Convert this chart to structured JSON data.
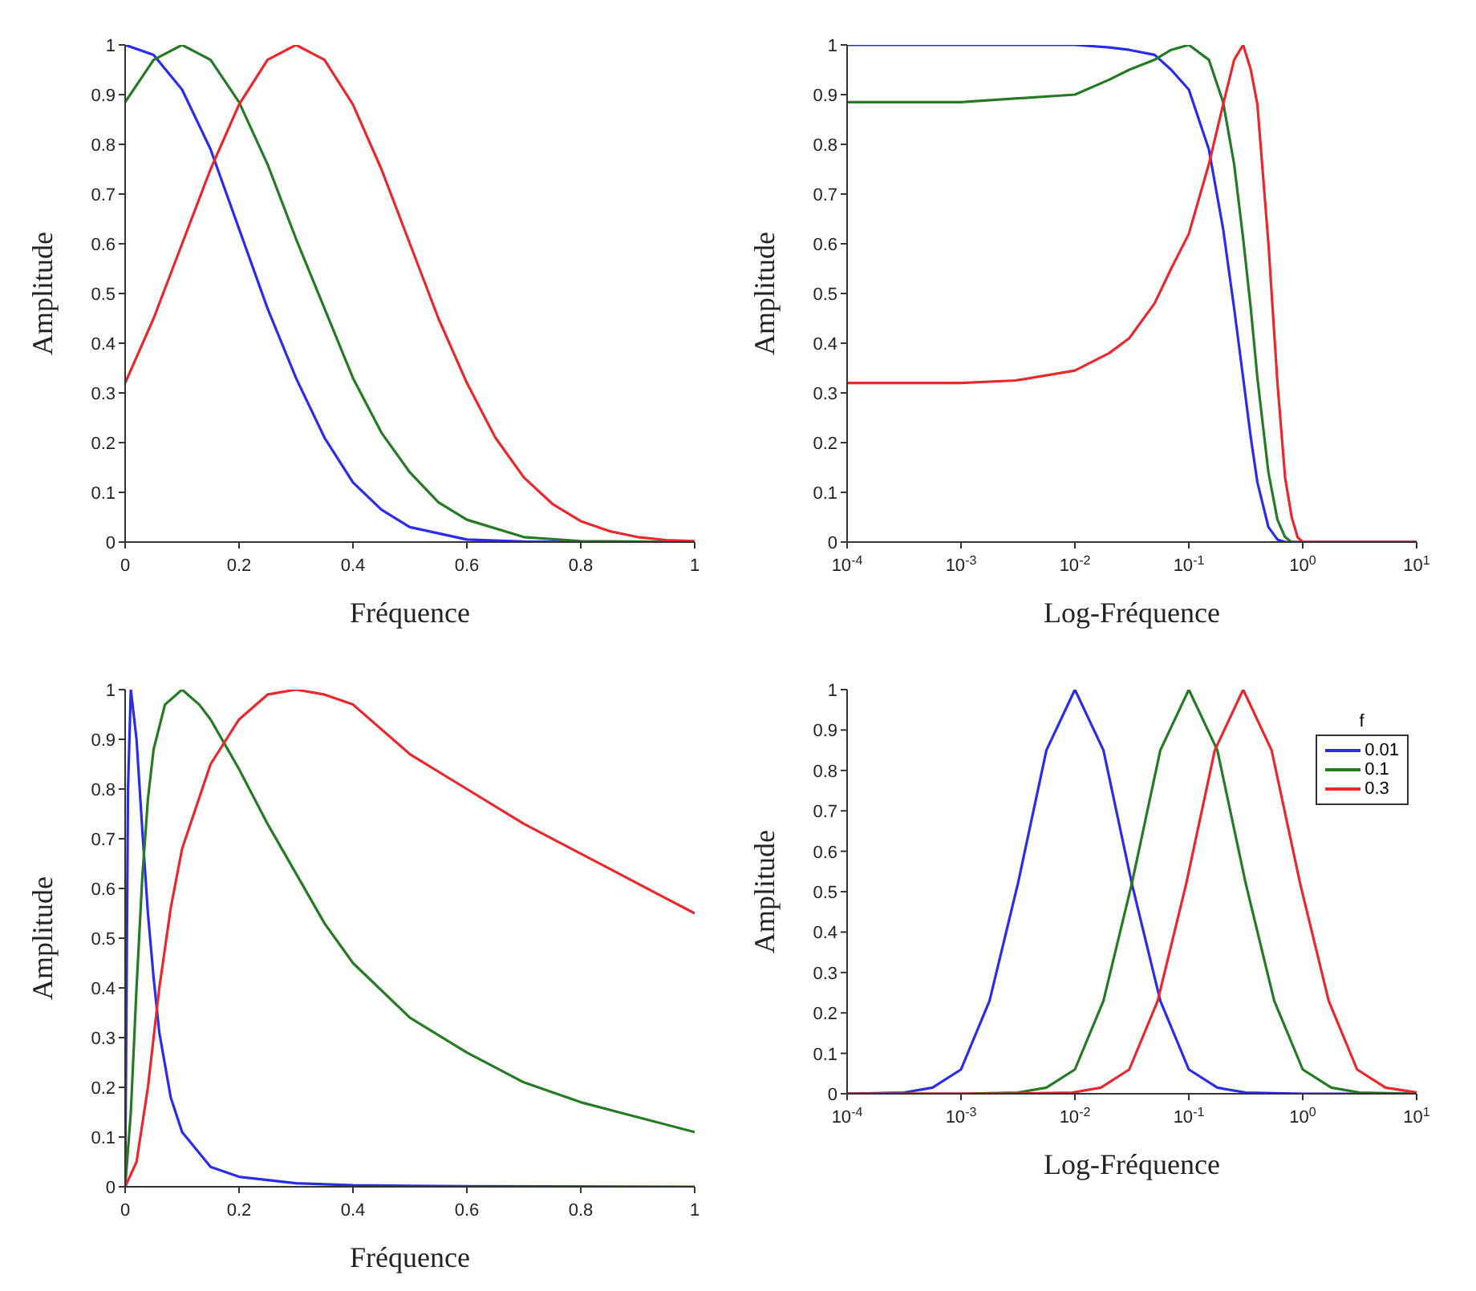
{
  "chart_data": [
    {
      "type": "line",
      "xlabel": "Fréquence",
      "ylabel": "Amplitude",
      "xlim": [
        0,
        1
      ],
      "xticks": [
        0,
        0.2,
        0.4,
        0.6,
        0.8,
        1
      ],
      "ylim": [
        0,
        1
      ],
      "yticks": [
        0,
        0.1,
        0.2,
        0.3,
        0.4,
        0.5,
        0.6,
        0.7,
        0.8,
        0.9,
        1
      ],
      "series": [
        {
          "color": "#2b2bea",
          "x": [
            0,
            0.05,
            0.1,
            0.15,
            0.2,
            0.25,
            0.3,
            0.35,
            0.4,
            0.45,
            0.5,
            0.6,
            0.7,
            0.8,
            1
          ],
          "values": [
            1,
            0.98,
            0.91,
            0.79,
            0.63,
            0.47,
            0.33,
            0.21,
            0.12,
            0.065,
            0.03,
            0.005,
            0.001,
            0,
            0
          ]
        },
        {
          "color": "#267a26",
          "x": [
            0,
            0.05,
            0.1,
            0.15,
            0.2,
            0.25,
            0.3,
            0.35,
            0.4,
            0.45,
            0.5,
            0.55,
            0.6,
            0.7,
            0.8,
            1
          ],
          "values": [
            0.885,
            0.97,
            1,
            0.97,
            0.885,
            0.76,
            0.61,
            0.47,
            0.33,
            0.22,
            0.14,
            0.08,
            0.045,
            0.01,
            0.002,
            0
          ]
        },
        {
          "color": "#e8282f",
          "x": [
            0,
            0.05,
            0.1,
            0.15,
            0.2,
            0.25,
            0.3,
            0.35,
            0.4,
            0.45,
            0.5,
            0.55,
            0.6,
            0.65,
            0.7,
            0.75,
            0.8,
            0.85,
            0.9,
            0.95,
            1
          ],
          "values": [
            0.32,
            0.45,
            0.6,
            0.75,
            0.88,
            0.97,
            1,
            0.97,
            0.88,
            0.75,
            0.6,
            0.45,
            0.32,
            0.21,
            0.13,
            0.077,
            0.042,
            0.022,
            0.01,
            0.004,
            0.002
          ]
        }
      ]
    },
    {
      "type": "line",
      "xlabel": "Log-Fréquence",
      "ylabel": "Amplitude",
      "log": "x",
      "xlim": [
        0.0001,
        10
      ],
      "xticks": [
        {
          "value": 0.0001,
          "label": "10$^{-4}$"
        },
        {
          "value": 0.001,
          "label": "10$^{-3}$"
        },
        {
          "value": 0.01,
          "label": "10$^{-2}$"
        },
        {
          "value": 0.1,
          "label": "10$^{-1}$"
        },
        {
          "value": 1,
          "label": "10$^{0}$"
        },
        {
          "value": 10,
          "label": "10$^{1}$"
        }
      ],
      "ylim": [
        0,
        1
      ],
      "yticks": [
        0,
        0.1,
        0.2,
        0.3,
        0.4,
        0.5,
        0.6,
        0.7,
        0.8,
        0.9,
        1
      ],
      "series": [
        {
          "color": "#2b2bea",
          "x": [
            0.0001,
            0.001,
            0.01,
            0.02,
            0.03,
            0.05,
            0.07,
            0.1,
            0.15,
            0.2,
            0.25,
            0.3,
            0.35,
            0.4,
            0.5,
            0.6,
            0.7,
            1,
            10
          ],
          "values": [
            1,
            1,
            1,
            0.995,
            0.99,
            0.98,
            0.95,
            0.91,
            0.79,
            0.63,
            0.47,
            0.33,
            0.21,
            0.12,
            0.03,
            0.005,
            0,
            0,
            0
          ]
        },
        {
          "color": "#267a26",
          "x": [
            0.0001,
            0.001,
            0.01,
            0.02,
            0.03,
            0.05,
            0.07,
            0.1,
            0.15,
            0.2,
            0.25,
            0.3,
            0.35,
            0.4,
            0.5,
            0.6,
            0.7,
            0.8,
            1,
            10
          ],
          "values": [
            0.885,
            0.885,
            0.9,
            0.93,
            0.95,
            0.97,
            0.99,
            1,
            0.97,
            0.885,
            0.76,
            0.61,
            0.47,
            0.33,
            0.14,
            0.045,
            0.01,
            0,
            0,
            0
          ]
        },
        {
          "color": "#e8282f",
          "x": [
            0.0001,
            0.001,
            0.003,
            0.01,
            0.02,
            0.03,
            0.05,
            0.07,
            0.1,
            0.15,
            0.2,
            0.25,
            0.3,
            0.35,
            0.4,
            0.5,
            0.6,
            0.7,
            0.8,
            0.9,
            1,
            10
          ],
          "values": [
            0.32,
            0.32,
            0.325,
            0.345,
            0.38,
            0.41,
            0.48,
            0.55,
            0.62,
            0.76,
            0.88,
            0.97,
            1,
            0.95,
            0.88,
            0.6,
            0.32,
            0.13,
            0.05,
            0.01,
            0,
            0
          ]
        }
      ]
    },
    {
      "type": "line",
      "xlabel": "Fréquence",
      "ylabel": "Amplitude",
      "xlim": [
        0,
        1
      ],
      "xticks": [
        0,
        0.2,
        0.4,
        0.6,
        0.8,
        1
      ],
      "ylim": [
        0,
        1
      ],
      "yticks": [
        0,
        0.1,
        0.2,
        0.3,
        0.4,
        0.5,
        0.6,
        0.7,
        0.8,
        0.9,
        1
      ],
      "series": [
        {
          "color": "#2b2bea",
          "x": [
            0,
            0.005,
            0.01,
            0.02,
            0.03,
            0.04,
            0.05,
            0.06,
            0.08,
            0.1,
            0.15,
            0.2,
            0.3,
            0.4,
            0.6,
            1
          ],
          "values": [
            0,
            0.8,
            1,
            0.9,
            0.72,
            0.55,
            0.42,
            0.31,
            0.18,
            0.11,
            0.04,
            0.02,
            0.007,
            0.003,
            0.001,
            0
          ]
        },
        {
          "color": "#267a26",
          "x": [
            0,
            0.01,
            0.02,
            0.03,
            0.04,
            0.05,
            0.07,
            0.1,
            0.13,
            0.15,
            0.18,
            0.2,
            0.25,
            0.3,
            0.35,
            0.4,
            0.5,
            0.6,
            0.7,
            0.8,
            0.9,
            1
          ],
          "values": [
            0,
            0.15,
            0.4,
            0.62,
            0.78,
            0.88,
            0.97,
            1,
            0.97,
            0.94,
            0.88,
            0.84,
            0.73,
            0.63,
            0.53,
            0.45,
            0.34,
            0.27,
            0.21,
            0.17,
            0.14,
            0.11
          ]
        },
        {
          "color": "#e8282f",
          "x": [
            0,
            0.02,
            0.04,
            0.06,
            0.08,
            0.1,
            0.15,
            0.2,
            0.25,
            0.3,
            0.35,
            0.4,
            0.5,
            0.6,
            0.7,
            0.8,
            0.9,
            1
          ],
          "values": [
            0,
            0.05,
            0.2,
            0.4,
            0.56,
            0.68,
            0.85,
            0.94,
            0.99,
            1,
            0.99,
            0.97,
            0.87,
            0.8,
            0.73,
            0.67,
            0.61,
            0.55
          ]
        }
      ]
    },
    {
      "type": "line",
      "xlabel": "Log-Fréquence",
      "ylabel": "Amplitude",
      "log": "x",
      "legend": "top right",
      "legend_title": "f",
      "xlim": [
        0.0001,
        10
      ],
      "xticks": [
        {
          "value": 0.0001,
          "label": "10$^{-4}$"
        },
        {
          "value": 0.001,
          "label": "10$^{-3}$"
        },
        {
          "value": 0.01,
          "label": "10$^{-2}$"
        },
        {
          "value": 0.1,
          "label": "10$^{-1}$"
        },
        {
          "value": 1,
          "label": "10$^{0}$"
        },
        {
          "value": 10,
          "label": "10$^{1}$"
        }
      ],
      "ylim": [
        0,
        1
      ],
      "yticks": [
        0,
        0.1,
        0.2,
        0.3,
        0.4,
        0.5,
        0.6,
        0.7,
        0.8,
        0.9,
        1
      ],
      "series": [
        {
          "name": "0.01",
          "color": "#2b2bea",
          "x": [
            0.0001,
            0.000316,
            0.000562,
            0.001,
            0.00178,
            0.00316,
            0.00562,
            0.01,
            0.0178,
            0.0316,
            0.0562,
            0.1,
            0.178,
            0.316,
            1,
            10
          ],
          "values": [
            0,
            0.003,
            0.015,
            0.06,
            0.23,
            0.52,
            0.85,
            1,
            0.85,
            0.52,
            0.23,
            0.06,
            0.015,
            0.003,
            0,
            0
          ]
        },
        {
          "name": "0.1",
          "color": "#267a26",
          "x": [
            0.0001,
            0.001,
            0.00316,
            0.00562,
            0.01,
            0.0178,
            0.0316,
            0.0562,
            0.1,
            0.178,
            0.316,
            0.562,
            1,
            1.78,
            3.16,
            10
          ],
          "values": [
            0,
            0,
            0.003,
            0.015,
            0.06,
            0.23,
            0.52,
            0.85,
            1,
            0.85,
            0.52,
            0.23,
            0.06,
            0.015,
            0.003,
            0
          ]
        },
        {
          "name": "0.3",
          "color": "#e8282f",
          "x": [
            0.0001,
            0.003,
            0.0095,
            0.0169,
            0.03,
            0.0533,
            0.0949,
            0.169,
            0.3,
            0.533,
            0.949,
            1.69,
            3,
            5.33,
            10
          ],
          "values": [
            0,
            0,
            0.003,
            0.015,
            0.06,
            0.23,
            0.52,
            0.85,
            1,
            0.85,
            0.52,
            0.23,
            0.06,
            0.015,
            0.003
          ]
        }
      ]
    }
  ]
}
